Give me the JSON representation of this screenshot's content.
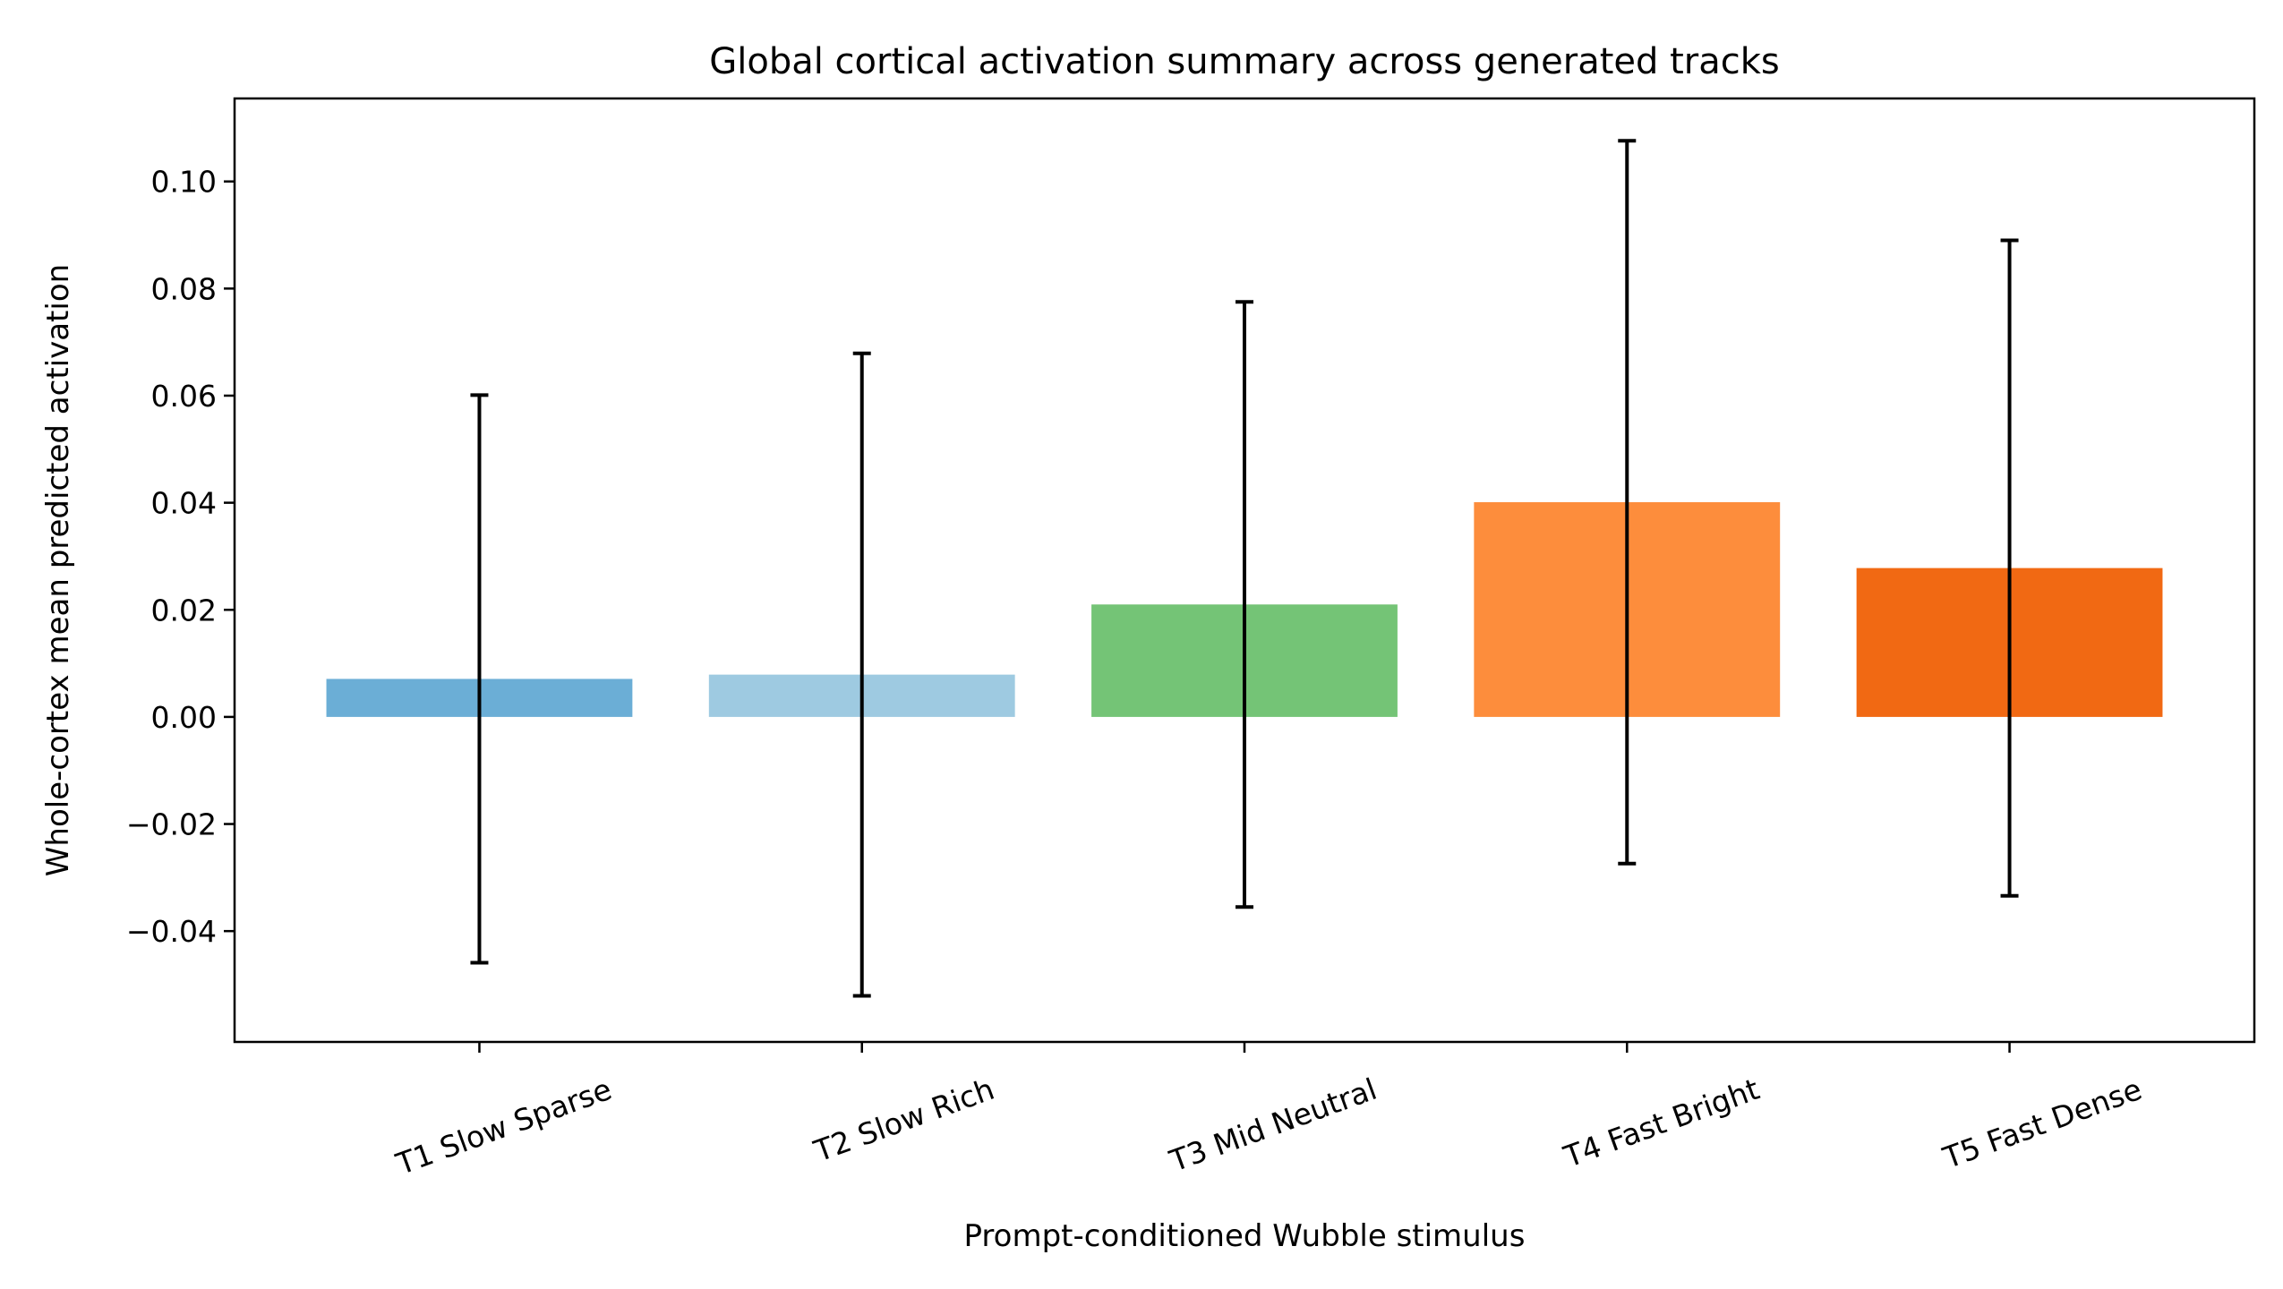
{
  "chart_data": {
    "type": "bar",
    "title": "Global cortical activation summary across generated tracks",
    "xlabel": "Prompt-conditioned Wubble stimulus",
    "ylabel": "Whole-cortex mean predicted activation",
    "categories": [
      "T1 Slow Sparse",
      "T2 Slow Rich",
      "T3 Mid Neutral",
      "T4 Fast Bright",
      "T5 Fast Dense"
    ],
    "values": [
      0.0071,
      0.0079,
      0.021,
      0.0401,
      0.0278
    ],
    "error": [
      0.053,
      0.06,
      0.0565,
      0.0675,
      0.0612
    ],
    "colors": [
      "#6baed6",
      "#9ecae1",
      "#74c476",
      "#fd8d3c",
      "#f16913"
    ],
    "ylim": [
      -0.0607,
      0.1155
    ],
    "xlim": [
      -0.64,
      4.64
    ],
    "yticks": [
      -0.04,
      -0.02,
      0.0,
      0.02,
      0.04,
      0.06,
      0.08,
      0.1
    ],
    "ytick_labels": [
      "−0.04",
      "−0.02",
      "0.00",
      "0.02",
      "0.04",
      "0.06",
      "0.08",
      "0.10"
    ],
    "xtick_rotation_deg": 20,
    "grid": false,
    "legend": "none"
  }
}
